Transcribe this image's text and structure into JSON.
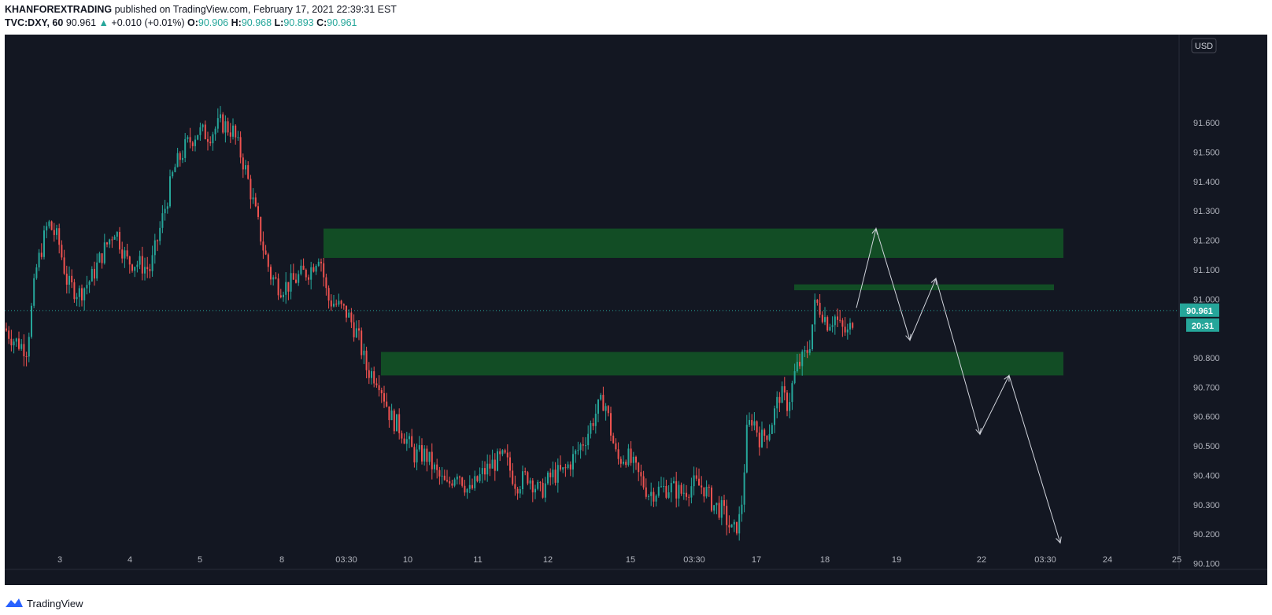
{
  "header": {
    "author": "KHANFOREXTRADING",
    "published": "published on TradingView.com, February 17, 2021 22:39:31 EST",
    "symbol": "TVC:DXY, 60",
    "last": "90.961",
    "change_arrow": "▲",
    "change": "+0.010 (+0.01%)",
    "o_label": "O:",
    "o_value": "90.906",
    "h_label": "H:",
    "h_value": "90.968",
    "l_label": "L:",
    "l_value": "90.893",
    "c_label": "C:",
    "c_value": "90.961"
  },
  "footer": {
    "brand": "TradingView",
    "logo_icon": "tradingview-logo-icon"
  },
  "colors": {
    "background": "#131722",
    "up": "#26a69a",
    "down": "#ef5350",
    "zone": "#124d25",
    "arrow": "#d1d4dc",
    "axis_text": "#b2b5be"
  },
  "chart_data": {
    "type": "candlestick",
    "symbol": "TVC:DXY",
    "interval": "60",
    "currency": "USD",
    "ylim": [
      90.08,
      91.9
    ],
    "y_ticks": [
      91.6,
      91.5,
      91.4,
      91.3,
      91.2,
      91.1,
      91.0,
      90.8,
      90.7,
      90.6,
      90.5,
      90.4,
      90.3,
      90.2,
      90.1
    ],
    "y_tick_labels": [
      "91.600",
      "91.500",
      "91.400",
      "91.300",
      "91.200",
      "91.100",
      "91.000",
      "90.800",
      "90.700",
      "90.600",
      "90.500",
      "90.400",
      "90.300",
      "90.200",
      "90.100"
    ],
    "x_ticks": [
      "3",
      "4",
      "5",
      "8",
      "03:30",
      "10",
      "11",
      "12",
      "15",
      "03:30",
      "17",
      "18",
      "19",
      "22",
      "03:30",
      "24",
      "25"
    ],
    "last_price": 90.961,
    "last_price_label": "90.961",
    "countdown": "20:31",
    "price_path": [
      [
        0,
        90.9
      ],
      [
        12,
        90.86
      ],
      [
        28,
        90.83
      ],
      [
        40,
        91.1
      ],
      [
        55,
        91.26
      ],
      [
        68,
        91.2
      ],
      [
        80,
        91.05
      ],
      [
        95,
        91.02
      ],
      [
        110,
        91.07
      ],
      [
        125,
        91.16
      ],
      [
        140,
        91.24
      ],
      [
        155,
        91.13
      ],
      [
        170,
        91.12
      ],
      [
        185,
        91.1
      ],
      [
        200,
        91.27
      ],
      [
        215,
        91.44
      ],
      [
        230,
        91.52
      ],
      [
        245,
        91.57
      ],
      [
        260,
        91.56
      ],
      [
        275,
        91.6
      ],
      [
        290,
        91.57
      ],
      [
        305,
        91.45
      ],
      [
        318,
        91.3
      ],
      [
        328,
        91.18
      ],
      [
        338,
        91.08
      ],
      [
        350,
        91.04
      ],
      [
        362,
        91.05
      ],
      [
        375,
        91.08
      ],
      [
        388,
        91.1
      ],
      [
        400,
        91.16
      ],
      [
        410,
        91.0
      ],
      [
        422,
        90.98
      ],
      [
        435,
        90.95
      ],
      [
        448,
        90.88
      ],
      [
        460,
        90.76
      ],
      [
        475,
        90.73
      ],
      [
        490,
        90.6
      ],
      [
        505,
        90.55
      ],
      [
        520,
        90.47
      ],
      [
        535,
        90.47
      ],
      [
        550,
        90.4
      ],
      [
        562,
        90.36
      ],
      [
        575,
        90.42
      ],
      [
        590,
        90.34
      ],
      [
        605,
        90.4
      ],
      [
        620,
        90.44
      ],
      [
        635,
        90.46
      ],
      [
        650,
        90.37
      ],
      [
        665,
        90.4
      ],
      [
        680,
        90.34
      ],
      [
        695,
        90.4
      ],
      [
        710,
        90.41
      ],
      [
        725,
        90.47
      ],
      [
        740,
        90.54
      ],
      [
        752,
        90.62
      ],
      [
        762,
        90.66
      ],
      [
        770,
        90.55
      ],
      [
        778,
        90.45
      ],
      [
        790,
        90.47
      ],
      [
        805,
        90.4
      ],
      [
        818,
        90.34
      ],
      [
        830,
        90.35
      ],
      [
        845,
        90.36
      ],
      [
        860,
        90.34
      ],
      [
        875,
        90.37
      ],
      [
        888,
        90.36
      ],
      [
        900,
        90.3
      ],
      [
        912,
        90.28
      ],
      [
        925,
        90.2
      ],
      [
        935,
        90.26
      ],
      [
        943,
        90.55
      ],
      [
        950,
        90.6
      ],
      [
        960,
        90.52
      ],
      [
        972,
        90.56
      ],
      [
        985,
        90.68
      ],
      [
        995,
        90.64
      ],
      [
        1005,
        90.76
      ],
      [
        1015,
        90.8
      ],
      [
        1022,
        90.84
      ],
      [
        1030,
        90.99
      ],
      [
        1038,
        90.96
      ],
      [
        1045,
        90.92
      ],
      [
        1055,
        90.94
      ],
      [
        1062,
        90.9
      ],
      [
        1072,
        90.88
      ],
      [
        1080,
        90.96
      ]
    ],
    "zones": [
      {
        "top": 91.24,
        "bottom": 91.14,
        "from_x": 405,
        "to_x": 1345
      },
      {
        "top": 91.05,
        "bottom": 91.03,
        "from_x": 1003,
        "to_x": 1333
      },
      {
        "top": 90.82,
        "bottom": 90.74,
        "from_x": 478,
        "to_x": 1345
      }
    ],
    "projection_path": [
      [
        1082,
        90.97
      ],
      [
        1107,
        91.24
      ],
      [
        1150,
        90.86
      ],
      [
        1183,
        91.07
      ],
      [
        1239,
        90.54
      ],
      [
        1276,
        90.74
      ],
      [
        1341,
        90.17
      ]
    ]
  }
}
